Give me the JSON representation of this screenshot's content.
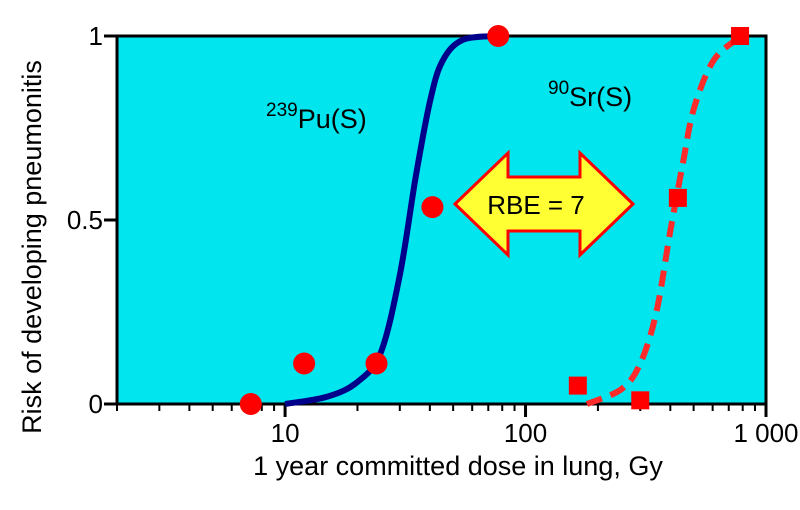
{
  "chart_data": {
    "type": "scatter",
    "title": "",
    "xlabel": "1 year committed dose in lung, Gy",
    "ylabel": "Risk of developing pneumonitis",
    "x_scale": "log",
    "xlim": [
      2,
      1000
    ],
    "ylim": [
      0,
      1
    ],
    "x_ticks": [
      10,
      100,
      1000
    ],
    "x_tick_labels": [
      "10",
      "100",
      "1 000"
    ],
    "y_ticks": [
      0,
      0.5,
      1
    ],
    "y_tick_labels": [
      "0",
      "0.5",
      "1"
    ],
    "grid": false,
    "colors": {
      "plot_background": "#00e5ee",
      "pu_curve": "#00008b",
      "sr_curve": "#ff2a2a",
      "markers": "#ff0000",
      "arrow_fill": "#ffff33",
      "arrow_stroke": "#ff0000"
    },
    "series": [
      {
        "label_sup": "239",
        "label_main": "Pu(S)",
        "marker": "circle",
        "points": [
          {
            "x": 7.2,
            "y": 0.0
          },
          {
            "x": 12,
            "y": 0.11
          },
          {
            "x": 24,
            "y": 0.11
          },
          {
            "x": 41,
            "y": 0.535
          },
          {
            "x": 77,
            "y": 1.0
          }
        ],
        "curve": "solid",
        "curve_points": [
          [
            10,
            0
          ],
          [
            15,
            0.02
          ],
          [
            20,
            0.06
          ],
          [
            25,
            0.14
          ],
          [
            30,
            0.35
          ],
          [
            35,
            0.62
          ],
          [
            40,
            0.82
          ],
          [
            45,
            0.93
          ],
          [
            55,
            0.99
          ],
          [
            80,
            1.0
          ]
        ]
      },
      {
        "label_sup": "90",
        "label_main": "Sr(S)",
        "marker": "square",
        "points": [
          {
            "x": 165,
            "y": 0.05
          },
          {
            "x": 300,
            "y": 0.01
          },
          {
            "x": 430,
            "y": 0.56
          },
          {
            "x": 780,
            "y": 1.0
          }
        ],
        "curve": "dashed",
        "curve_points": [
          [
            180,
            0
          ],
          [
            250,
            0.04
          ],
          [
            300,
            0.11
          ],
          [
            350,
            0.25
          ],
          [
            400,
            0.47
          ],
          [
            450,
            0.65
          ],
          [
            500,
            0.8
          ],
          [
            600,
            0.93
          ],
          [
            750,
            0.99
          ],
          [
            800,
            1.0
          ]
        ]
      }
    ],
    "annotations": [
      {
        "text": "RBE = 7",
        "shape": "double-arrow"
      }
    ]
  }
}
